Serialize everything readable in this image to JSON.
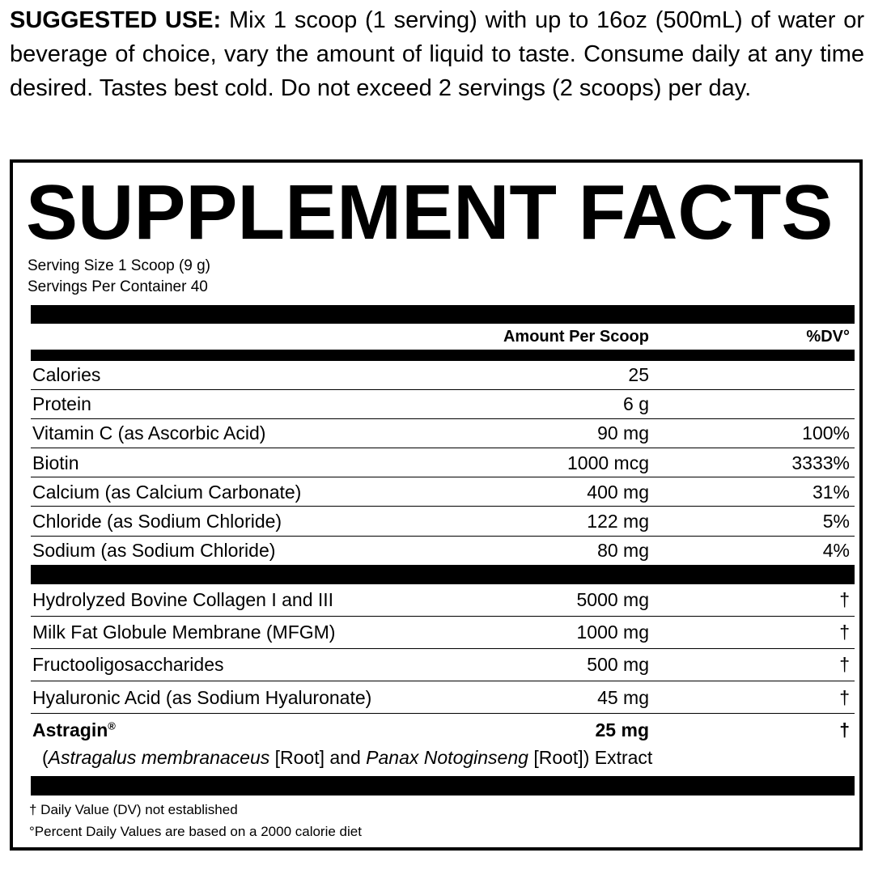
{
  "suggested_use": {
    "label": "SUGGESTED USE:",
    "text": " Mix 1 scoop (1 serving) with up to 16oz (500mL) of water or beverage of choice, vary the amount of liquid to taste. Consume daily at any time desired. Tastes best cold. Do not exceed 2 servings (2 scoops) per day."
  },
  "facts": {
    "title": "SUPPLEMENT FACTS",
    "serving_size": "Serving Size 1 Scoop (9 g)",
    "servings_per_container": "Servings Per Container 40",
    "header": {
      "amount": "Amount Per Scoop",
      "dv": "%DV°"
    },
    "group1": [
      {
        "name": "Calories",
        "amount": "25",
        "dv": ""
      },
      {
        "name": "Protein",
        "amount": "6 g",
        "dv": ""
      },
      {
        "name": "Vitamin C (as Ascorbic Acid)",
        "amount": "90 mg",
        "dv": "100%"
      },
      {
        "name": "Biotin",
        "amount": "1000 mcg",
        "dv": "3333%"
      },
      {
        "name": "Calcium (as Calcium Carbonate)",
        "amount": "400 mg",
        "dv": "31%"
      },
      {
        "name": "Chloride (as Sodium Chloride)",
        "amount": "122 mg",
        "dv": "5%"
      },
      {
        "name": "Sodium (as Sodium Chloride)",
        "amount": "80 mg",
        "dv": "4%"
      }
    ],
    "group2": [
      {
        "name": "Hydrolyzed Bovine Collagen I and III",
        "amount": "5000 mg",
        "dv": "†"
      },
      {
        "name": "Milk Fat Globule Membrane (MFGM)",
        "amount": "1000 mg",
        "dv": "†"
      },
      {
        "name": "Fructooligosaccharides",
        "amount": "500 mg",
        "dv": "†"
      },
      {
        "name": "Hyaluronic Acid (as Sodium Hyaluronate)",
        "amount": "45 mg",
        "dv": "†"
      }
    ],
    "astragin": {
      "name": "Astragin",
      "reg": "®",
      "amount": "25 mg",
      "dv": "†",
      "sub": {
        "p1": "(",
        "i1": "Astragalus membranaceus",
        "p2": " [Root] and ",
        "i2": "Panax Notoginseng",
        "p3": " [Root]) Extract"
      }
    },
    "footnotes": [
      "† Daily Value (DV) not established",
      "°Percent Daily Values are based on a 2000 calorie diet"
    ]
  }
}
